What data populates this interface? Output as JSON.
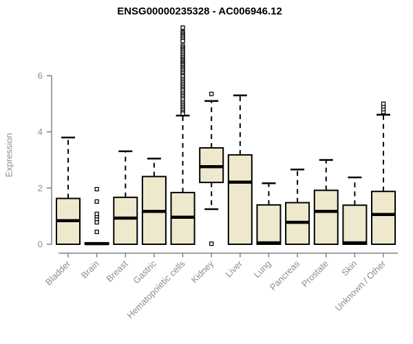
{
  "chart_data": {
    "type": "boxplot",
    "title": "ENSG00000235328 - AC006946.12",
    "ylabel": "Expression",
    "xlabel": "",
    "yticks": [
      0,
      2,
      4,
      6
    ],
    "ylim": [
      0,
      7.9
    ],
    "grid": false,
    "legend": false,
    "colors": {
      "box_fill": "#eee8cd",
      "box_stroke": "#000000",
      "median": "#000000",
      "whisker": "#000000",
      "axis_line": "#808080",
      "axis_text": "#8c8c8c",
      "title": "#000000",
      "outlier_fill": "#ffffff"
    },
    "categories": [
      "Bladder",
      "Brain",
      "Breast",
      "Gastric",
      "Hematopoietic cells",
      "Kidney",
      "Liver",
      "Lung",
      "Pancreas",
      "Prostate",
      "Skin",
      "Unknown / Other"
    ],
    "boxes": [
      {
        "category": "Bladder",
        "q1": 0,
        "median": 0.84,
        "q3": 1.63,
        "whisker_low": 0,
        "whisker_high": 3.8,
        "outliers": []
      },
      {
        "category": "Brain",
        "q1": 0,
        "median": 0.02,
        "q3": 0.05,
        "whisker_low": 0,
        "whisker_high": 0.05,
        "outliers": [
          0.44,
          0.78,
          0.9,
          1.0,
          1.08,
          1.52,
          1.96
        ]
      },
      {
        "category": "Breast",
        "q1": 0,
        "median": 0.93,
        "q3": 1.67,
        "whisker_low": 0,
        "whisker_high": 3.31,
        "outliers": []
      },
      {
        "category": "Gastric",
        "q1": 0,
        "median": 1.17,
        "q3": 2.41,
        "whisker_low": 0,
        "whisker_high": 3.05,
        "outliers": []
      },
      {
        "category": "Hematopoietic cells",
        "q1": 0,
        "median": 0.96,
        "q3": 1.84,
        "whisker_low": 0,
        "whisker_high": 4.58,
        "outliers": [
          7.71,
          7.55,
          7.5,
          7.45,
          7.4,
          7.35,
          7.29,
          7.23,
          7.06,
          7.0,
          6.95,
          6.9,
          6.84,
          6.78,
          6.72,
          6.66,
          6.6,
          6.55,
          6.5,
          6.45,
          6.41,
          6.36,
          6.3,
          6.25,
          6.2,
          6.14,
          6.08,
          6.02,
          5.97,
          5.88,
          5.82,
          5.76,
          5.7,
          5.64,
          5.58,
          5.52,
          5.47,
          5.39,
          5.33,
          5.27,
          5.21,
          5.15,
          5.06,
          5.0,
          4.94,
          4.88,
          4.82,
          4.76,
          4.7,
          4.65
        ]
      },
      {
        "category": "Kidney",
        "q1": 2.2,
        "median": 2.76,
        "q3": 3.43,
        "whisker_low": 1.25,
        "whisker_high": 5.1,
        "outliers": [
          5.35,
          0.02
        ]
      },
      {
        "category": "Liver",
        "q1": 0,
        "median": 2.21,
        "q3": 3.18,
        "whisker_low": 0,
        "whisker_high": 5.3,
        "outliers": []
      },
      {
        "category": "Lung",
        "q1": 0,
        "median": 0.05,
        "q3": 1.4,
        "whisker_low": 0,
        "whisker_high": 2.17,
        "outliers": []
      },
      {
        "category": "Pancreas",
        "q1": 0,
        "median": 0.78,
        "q3": 1.48,
        "whisker_low": 0,
        "whisker_high": 2.66,
        "outliers": []
      },
      {
        "category": "Prostate",
        "q1": 0,
        "median": 1.17,
        "q3": 1.92,
        "whisker_low": 0,
        "whisker_high": 3.0,
        "outliers": []
      },
      {
        "category": "Skin",
        "q1": 0,
        "median": 0.05,
        "q3": 1.39,
        "whisker_low": 0,
        "whisker_high": 2.38,
        "outliers": []
      },
      {
        "category": "Unknown / Other",
        "q1": 0,
        "median": 1.06,
        "q3": 1.88,
        "whisker_low": 0,
        "whisker_high": 4.61,
        "outliers": [
          4.71,
          4.81,
          4.91,
          5.0
        ]
      }
    ]
  }
}
